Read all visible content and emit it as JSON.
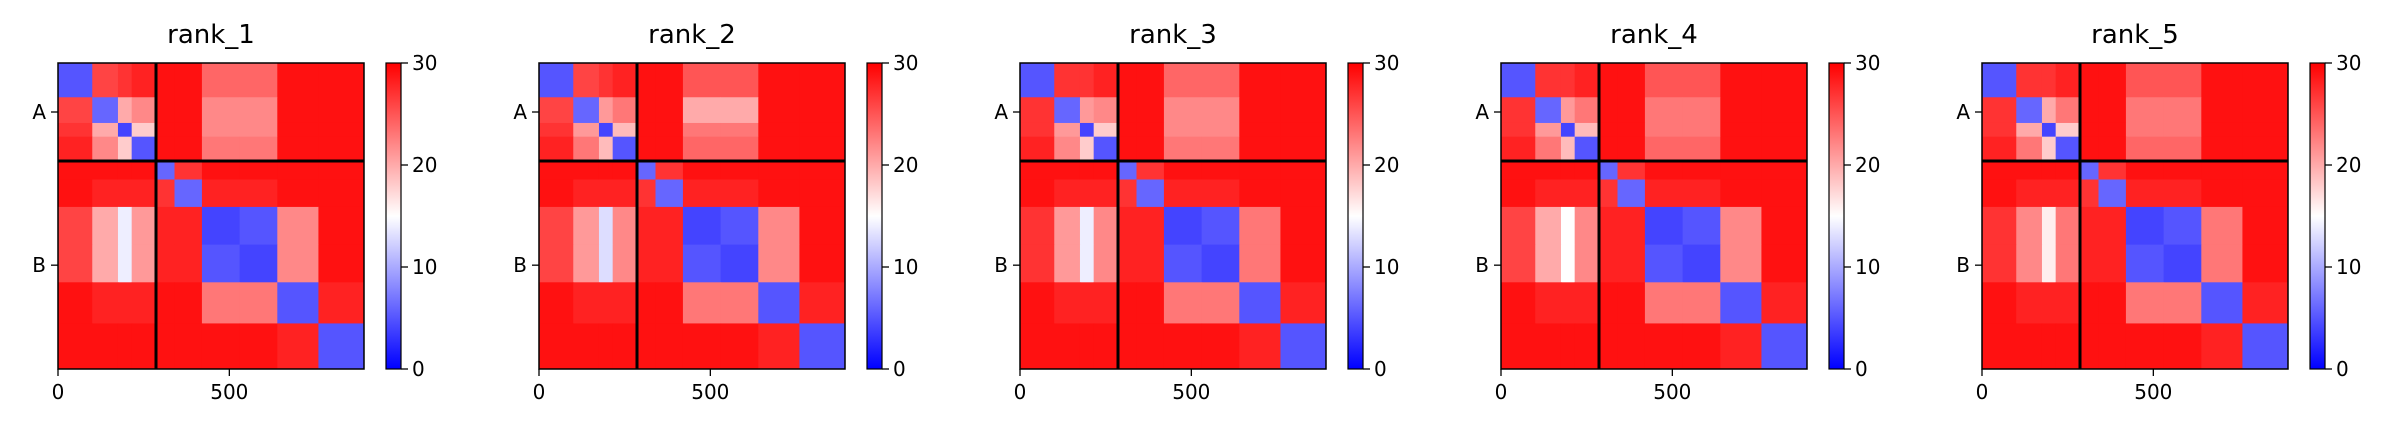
{
  "chart_data": [
    {
      "type": "heatmap",
      "title": "rank_1",
      "bins": [
        0,
        100,
        175,
        215,
        286,
        340,
        420,
        530,
        640,
        760,
        893
      ],
      "xlim": [
        0,
        893
      ],
      "ylim": [
        893,
        0
      ],
      "xticks": [
        0,
        500
      ],
      "yticks": [
        {
          "value": 143,
          "label": "A"
        },
        {
          "value": 590,
          "label": "B"
        }
      ],
      "chain_breaks": [
        286
      ],
      "clim": [
        0,
        30
      ],
      "cticks": [
        0,
        10,
        20,
        30
      ],
      "colormap": [
        "#0000ff",
        "#ffffff",
        "#ff0000"
      ],
      "matrix": [
        [
          5,
          26,
          27,
          28,
          29,
          29,
          24,
          24,
          29,
          29
        ],
        [
          26,
          6,
          20,
          22,
          29,
          29,
          22,
          22,
          29,
          29
        ],
        [
          27,
          20,
          4,
          18,
          29,
          29,
          22,
          22,
          29,
          29
        ],
        [
          28,
          22,
          18,
          5,
          29,
          29,
          23,
          23,
          29,
          29
        ],
        [
          29,
          29,
          29,
          29,
          6,
          27,
          29,
          29,
          29,
          29
        ],
        [
          29,
          28,
          28,
          28,
          27,
          6,
          28,
          28,
          29,
          29
        ],
        [
          26,
          20,
          14,
          21,
          28,
          28,
          4,
          5,
          22,
          29
        ],
        [
          26,
          20,
          14,
          21,
          28,
          28,
          5,
          4,
          22,
          29
        ],
        [
          29,
          28,
          28,
          28,
          29,
          29,
          23,
          23,
          5,
          28
        ],
        [
          29,
          29,
          29,
          29,
          29,
          29,
          29,
          29,
          28,
          5
        ]
      ]
    },
    {
      "type": "heatmap",
      "title": "rank_2",
      "bins": [
        0,
        100,
        175,
        215,
        286,
        340,
        420,
        530,
        640,
        760,
        893
      ],
      "xlim": [
        0,
        893
      ],
      "ylim": [
        893,
        0
      ],
      "xticks": [
        0,
        500
      ],
      "yticks": [
        {
          "value": 143,
          "label": "A"
        },
        {
          "value": 590,
          "label": "B"
        }
      ],
      "chain_breaks": [
        286
      ],
      "clim": [
        0,
        30
      ],
      "cticks": [
        0,
        10,
        20,
        30
      ],
      "colormap": [
        "#0000ff",
        "#ffffff",
        "#ff0000"
      ],
      "matrix": [
        [
          5,
          26,
          27,
          28,
          29,
          29,
          25,
          25,
          29,
          29
        ],
        [
          26,
          6,
          21,
          23,
          29,
          29,
          20,
          20,
          29,
          29
        ],
        [
          27,
          21,
          4,
          19,
          29,
          29,
          23,
          23,
          29,
          29
        ],
        [
          28,
          23,
          19,
          5,
          29,
          29,
          24,
          24,
          29,
          29
        ],
        [
          29,
          29,
          29,
          29,
          6,
          27,
          29,
          29,
          29,
          29
        ],
        [
          29,
          28,
          28,
          28,
          27,
          6,
          28,
          28,
          29,
          29
        ],
        [
          26,
          21,
          13,
          22,
          28,
          28,
          4,
          5,
          22,
          29
        ],
        [
          26,
          21,
          13,
          22,
          28,
          28,
          5,
          4,
          22,
          29
        ],
        [
          29,
          28,
          28,
          28,
          29,
          29,
          23,
          23,
          5,
          28
        ],
        [
          29,
          29,
          29,
          29,
          29,
          29,
          29,
          29,
          28,
          5
        ]
      ]
    },
    {
      "type": "heatmap",
      "title": "rank_3",
      "bins": [
        0,
        100,
        175,
        215,
        286,
        340,
        420,
        530,
        640,
        760,
        893
      ],
      "xlim": [
        0,
        893
      ],
      "ylim": [
        893,
        0
      ],
      "xticks": [
        0,
        500
      ],
      "yticks": [
        {
          "value": 143,
          "label": "A"
        },
        {
          "value": 590,
          "label": "B"
        }
      ],
      "chain_breaks": [
        286
      ],
      "clim": [
        0,
        30
      ],
      "cticks": [
        0,
        10,
        20,
        30
      ],
      "colormap": [
        "#0000ff",
        "#ffffff",
        "#ff0000"
      ],
      "matrix": [
        [
          5,
          27,
          27,
          28,
          29,
          29,
          24,
          24,
          29,
          29
        ],
        [
          27,
          6,
          21,
          22,
          29,
          29,
          22,
          22,
          29,
          29
        ],
        [
          27,
          21,
          4,
          18,
          29,
          29,
          22,
          22,
          29,
          29
        ],
        [
          28,
          22,
          18,
          5,
          29,
          29,
          23,
          23,
          29,
          29
        ],
        [
          29,
          29,
          29,
          29,
          6,
          27,
          29,
          29,
          29,
          29
        ],
        [
          29,
          28,
          28,
          28,
          27,
          6,
          28,
          28,
          29,
          29
        ],
        [
          27,
          21,
          14,
          22,
          28,
          28,
          4,
          5,
          23,
          29
        ],
        [
          27,
          21,
          14,
          22,
          28,
          28,
          5,
          4,
          23,
          29
        ],
        [
          29,
          28,
          28,
          28,
          29,
          29,
          23,
          23,
          5,
          28
        ],
        [
          29,
          29,
          29,
          29,
          29,
          29,
          29,
          29,
          28,
          5
        ]
      ]
    },
    {
      "type": "heatmap",
      "title": "rank_4",
      "bins": [
        0,
        100,
        175,
        215,
        286,
        340,
        420,
        530,
        640,
        760,
        893
      ],
      "xlim": [
        0,
        893
      ],
      "ylim": [
        893,
        0
      ],
      "xticks": [
        0,
        500
      ],
      "yticks": [
        {
          "value": 143,
          "label": "A"
        },
        {
          "value": 590,
          "label": "B"
        }
      ],
      "chain_breaks": [
        286
      ],
      "clim": [
        0,
        30
      ],
      "cticks": [
        0,
        10,
        20,
        30
      ],
      "colormap": [
        "#0000ff",
        "#ffffff",
        "#ff0000"
      ],
      "matrix": [
        [
          5,
          27,
          27,
          28,
          29,
          29,
          25,
          25,
          29,
          29
        ],
        [
          27,
          6,
          21,
          23,
          29,
          29,
          23,
          23,
          29,
          29
        ],
        [
          27,
          21,
          4,
          19,
          29,
          29,
          23,
          23,
          29,
          29
        ],
        [
          28,
          23,
          19,
          5,
          29,
          29,
          24,
          24,
          29,
          29
        ],
        [
          29,
          29,
          29,
          29,
          6,
          27,
          29,
          29,
          29,
          29
        ],
        [
          29,
          28,
          28,
          28,
          27,
          6,
          28,
          28,
          29,
          29
        ],
        [
          26,
          20,
          15,
          22,
          28,
          28,
          4,
          5,
          22,
          29
        ],
        [
          26,
          20,
          15,
          22,
          28,
          28,
          5,
          4,
          22,
          29
        ],
        [
          29,
          28,
          28,
          28,
          29,
          29,
          23,
          23,
          5,
          28
        ],
        [
          29,
          29,
          29,
          29,
          29,
          29,
          29,
          29,
          28,
          5
        ]
      ]
    },
    {
      "type": "heatmap",
      "title": "rank_5",
      "bins": [
        0,
        100,
        175,
        215,
        286,
        340,
        420,
        530,
        640,
        760,
        893
      ],
      "xlim": [
        0,
        893
      ],
      "ylim": [
        893,
        0
      ],
      "xticks": [
        0,
        500
      ],
      "yticks": [
        {
          "value": 143,
          "label": "A"
        },
        {
          "value": 590,
          "label": "B"
        }
      ],
      "chain_breaks": [
        286
      ],
      "clim": [
        0,
        30
      ],
      "cticks": [
        0,
        10,
        20,
        30
      ],
      "colormap": [
        "#0000ff",
        "#ffffff",
        "#ff0000"
      ],
      "matrix": [
        [
          5,
          27,
          27,
          28,
          29,
          29,
          25,
          25,
          29,
          29
        ],
        [
          27,
          6,
          20,
          23,
          29,
          29,
          23,
          23,
          29,
          29
        ],
        [
          27,
          20,
          4,
          18,
          29,
          29,
          23,
          23,
          29,
          29
        ],
        [
          28,
          23,
          18,
          5,
          29,
          29,
          24,
          24,
          29,
          29
        ],
        [
          29,
          29,
          29,
          29,
          6,
          27,
          29,
          29,
          29,
          29
        ],
        [
          29,
          28,
          28,
          28,
          27,
          6,
          28,
          28,
          29,
          29
        ],
        [
          27,
          22,
          16,
          23,
          28,
          28,
          4,
          5,
          23,
          29
        ],
        [
          27,
          22,
          16,
          23,
          28,
          28,
          5,
          4,
          23,
          29
        ],
        [
          29,
          28,
          28,
          28,
          29,
          29,
          23,
          23,
          5,
          28
        ],
        [
          29,
          29,
          29,
          29,
          29,
          29,
          29,
          29,
          28,
          5
        ]
      ]
    }
  ]
}
